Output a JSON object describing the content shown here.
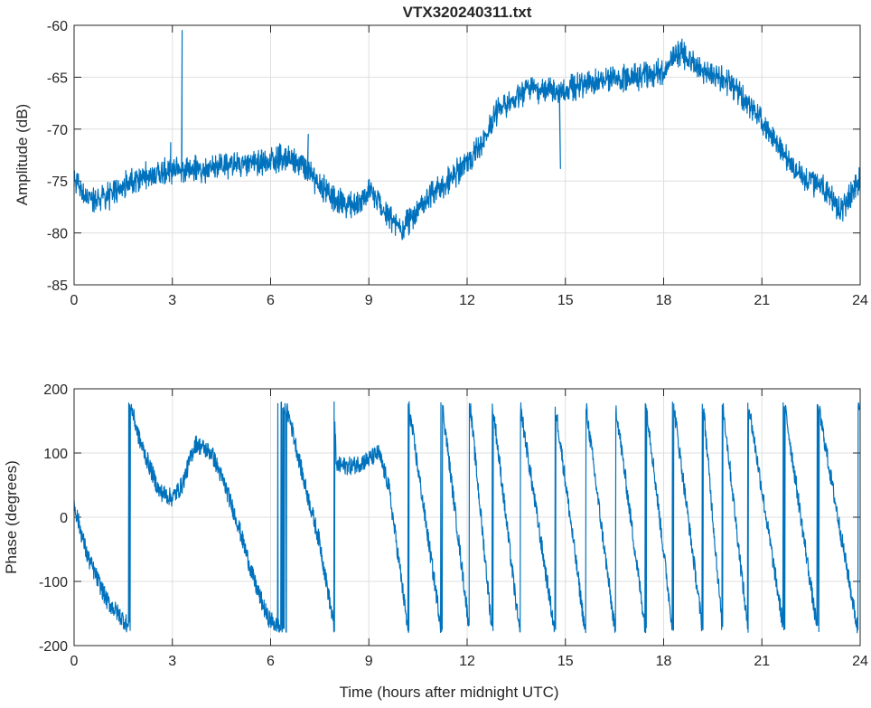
{
  "chart_data": [
    {
      "type": "line",
      "title": "VTX320240311.txt",
      "xlabel": "",
      "ylabel": "Amplitude (dB)",
      "xlim": [
        0,
        24
      ],
      "ylim": [
        -85,
        -60
      ],
      "xticks": [
        "0",
        "3",
        "6",
        "9",
        "12",
        "15",
        "18",
        "21",
        "24"
      ],
      "yticks": [
        "-60",
        "-65",
        "-70",
        "-75",
        "-80",
        "-85"
      ],
      "grid": true,
      "color": "#0072bd",
      "noise": 1.4,
      "anchors": [
        [
          0,
          -75
        ],
        [
          0.5,
          -77
        ],
        [
          1,
          -76.5
        ],
        [
          1.5,
          -75.5
        ],
        [
          2,
          -74.6
        ],
        [
          3,
          -74
        ],
        [
          4,
          -73.8
        ],
        [
          5,
          -73.4
        ],
        [
          6,
          -73
        ],
        [
          6.5,
          -72.6
        ],
        [
          7,
          -73.5
        ],
        [
          8,
          -77
        ],
        [
          8.6,
          -77.3
        ],
        [
          9,
          -76
        ],
        [
          9.5,
          -78
        ],
        [
          10,
          -79.5
        ],
        [
          10.5,
          -78
        ],
        [
          11,
          -76
        ],
        [
          12,
          -73.5
        ],
        [
          12.5,
          -71
        ],
        [
          13,
          -68
        ],
        [
          14,
          -66
        ],
        [
          14.8,
          -66.5
        ],
        [
          15.2,
          -66
        ],
        [
          16,
          -65.5
        ],
        [
          17,
          -65
        ],
        [
          18,
          -64.5
        ],
        [
          18.5,
          -62.5
        ],
        [
          19,
          -64
        ],
        [
          20,
          -65.5
        ],
        [
          21,
          -69
        ],
        [
          22,
          -74
        ],
        [
          23,
          -76
        ],
        [
          23.4,
          -78
        ],
        [
          23.7,
          -76.5
        ],
        [
          24,
          -75
        ]
      ],
      "spikes": [
        [
          2.95,
          -71.3
        ],
        [
          3.3,
          -60.5
        ],
        [
          7.15,
          -70.5
        ],
        [
          14.85,
          -73.8
        ]
      ]
    },
    {
      "type": "line",
      "title": "",
      "xlabel": "Time (hours after midnight UTC)",
      "ylabel": "Phase (degrees)",
      "xlim": [
        0,
        24
      ],
      "ylim": [
        -200,
        200
      ],
      "xticks": [
        "0",
        "3",
        "6",
        "9",
        "12",
        "15",
        "18",
        "21",
        "24"
      ],
      "yticks": [
        "200",
        "100",
        "0",
        "-100",
        "-200"
      ],
      "grid": true,
      "color": "#0072bd",
      "noise": 14,
      "unwrapped_anchors": [
        [
          0,
          20
        ],
        [
          0.4,
          -60
        ],
        [
          1.0,
          -130
        ],
        [
          1.6,
          -165
        ],
        [
          1.7,
          -180
        ],
        [
          2.0,
          -240
        ],
        [
          2.6,
          -320
        ],
        [
          3.0,
          -330
        ],
        [
          3.3,
          -310
        ],
        [
          3.7,
          -245
        ],
        [
          4.2,
          -260
        ],
        [
          4.6,
          -310
        ],
        [
          5.0,
          -370
        ],
        [
          5.5,
          -460
        ],
        [
          5.9,
          -515
        ],
        [
          6.3,
          -535
        ],
        [
          6.4,
          -540
        ],
        [
          6.6,
          -570
        ],
        [
          7.0,
          -660
        ],
        [
          7.5,
          -760
        ],
        [
          7.9,
          -880
        ],
        [
          7.95,
          -900
        ],
        [
          8.0,
          -1000
        ],
        [
          8.5,
          -1000
        ],
        [
          9.0,
          -990
        ],
        [
          9.3,
          -980
        ],
        [
          9.6,
          -1030
        ],
        [
          10.0,
          -1180
        ],
        [
          10.2,
          -1260
        ],
        [
          11.23,
          -1620
        ],
        [
          12.08,
          -1980
        ],
        [
          12.77,
          -2340
        ],
        [
          13.6,
          -2700
        ],
        [
          14.68,
          -3060
        ],
        [
          15.61,
          -3420
        ],
        [
          16.52,
          -3780
        ],
        [
          17.46,
          -4140
        ],
        [
          18.29,
          -4500
        ],
        [
          19.2,
          -4860
        ],
        [
          19.8,
          -5220
        ],
        [
          20.58,
          -5580
        ],
        [
          21.68,
          -5940
        ],
        [
          22.7,
          -6300
        ],
        [
          23.94,
          -6660
        ],
        [
          24,
          -6660
        ]
      ]
    }
  ]
}
